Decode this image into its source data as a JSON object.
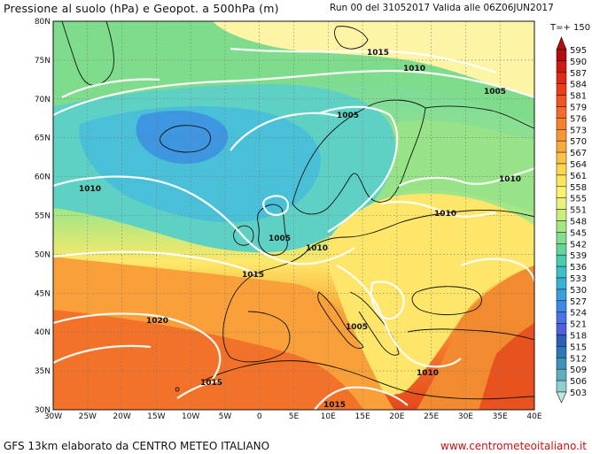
{
  "header": {
    "title": "Pressione al suolo (hPa) e Geopot. a 500hPa (m)",
    "run_info": "Run 00 del 31052017  Valida alle 06Z06JUN2017",
    "forecast_step": "T=+ 150"
  },
  "footer": {
    "credit": "GFS 13km elaborato da CENTRO METEO ITALIANO",
    "website": "www.centrometeoitaliano.it"
  },
  "map": {
    "lat_labels": [
      "80N",
      "75N",
      "70N",
      "65N",
      "60N",
      "55N",
      "50N",
      "45N",
      "40N",
      "35N",
      "30N"
    ],
    "lon_labels": [
      "30W",
      "25W",
      "20W",
      "15W",
      "10W",
      "5W",
      "0",
      "5E",
      "10E",
      "15E",
      "20E",
      "25E",
      "30E",
      "35E",
      "40E"
    ],
    "isobar_labels": [
      {
        "text": "1015",
        "name": "isobar-label-1015-north"
      },
      {
        "text": "1010",
        "name": "isobar-label-1010-north"
      },
      {
        "text": "1005",
        "name": "isobar-label-1005-barents"
      },
      {
        "text": "1005",
        "name": "isobar-label-1005-norway"
      },
      {
        "text": "1010",
        "name": "isobar-label-1010-west"
      },
      {
        "text": "1010",
        "name": "isobar-label-1010-russia"
      },
      {
        "text": "1010",
        "name": "isobar-label-1010-baltic"
      },
      {
        "text": "1005",
        "name": "isobar-label-1005-northsea"
      },
      {
        "text": "1010",
        "name": "isobar-label-1010-denmark"
      },
      {
        "text": "1015",
        "name": "isobar-label-1015-france"
      },
      {
        "text": "1020",
        "name": "isobar-label-1020-atlantic"
      },
      {
        "text": "1005",
        "name": "isobar-label-1005-balkans"
      },
      {
        "text": "1010",
        "name": "isobar-label-1010-turkey"
      },
      {
        "text": "1015",
        "name": "isobar-label-1015-morocco"
      },
      {
        "text": "1015",
        "name": "isobar-label-1015-libya"
      }
    ]
  },
  "legend": {
    "values": [
      "595",
      "590",
      "587",
      "584",
      "581",
      "579",
      "576",
      "573",
      "570",
      "567",
      "564",
      "561",
      "558",
      "555",
      "551",
      "548",
      "545",
      "542",
      "539",
      "536",
      "533",
      "530",
      "527",
      "524",
      "521",
      "518",
      "515",
      "512",
      "509",
      "506",
      "503"
    ],
    "colors": [
      "#b30c0c",
      "#cf1b0f",
      "#e02a12",
      "#ea3f18",
      "#f05522",
      "#f46a28",
      "#f7802e",
      "#f99535",
      "#fbab3c",
      "#fdc245",
      "#fed650",
      "#fee65c",
      "#fdf270",
      "#e9f37c",
      "#c9ee7d",
      "#a6e682",
      "#84dd8c",
      "#64d49c",
      "#4bcbb2",
      "#3cc2c6",
      "#38b3d6",
      "#3a9fe0",
      "#3f89e6",
      "#4874e6",
      "#4f5fdd",
      "#2b5fb8",
      "#2c78b4",
      "#3b93b9",
      "#5fafc1",
      "#8ecdd0",
      "#c2e9e4"
    ]
  }
}
